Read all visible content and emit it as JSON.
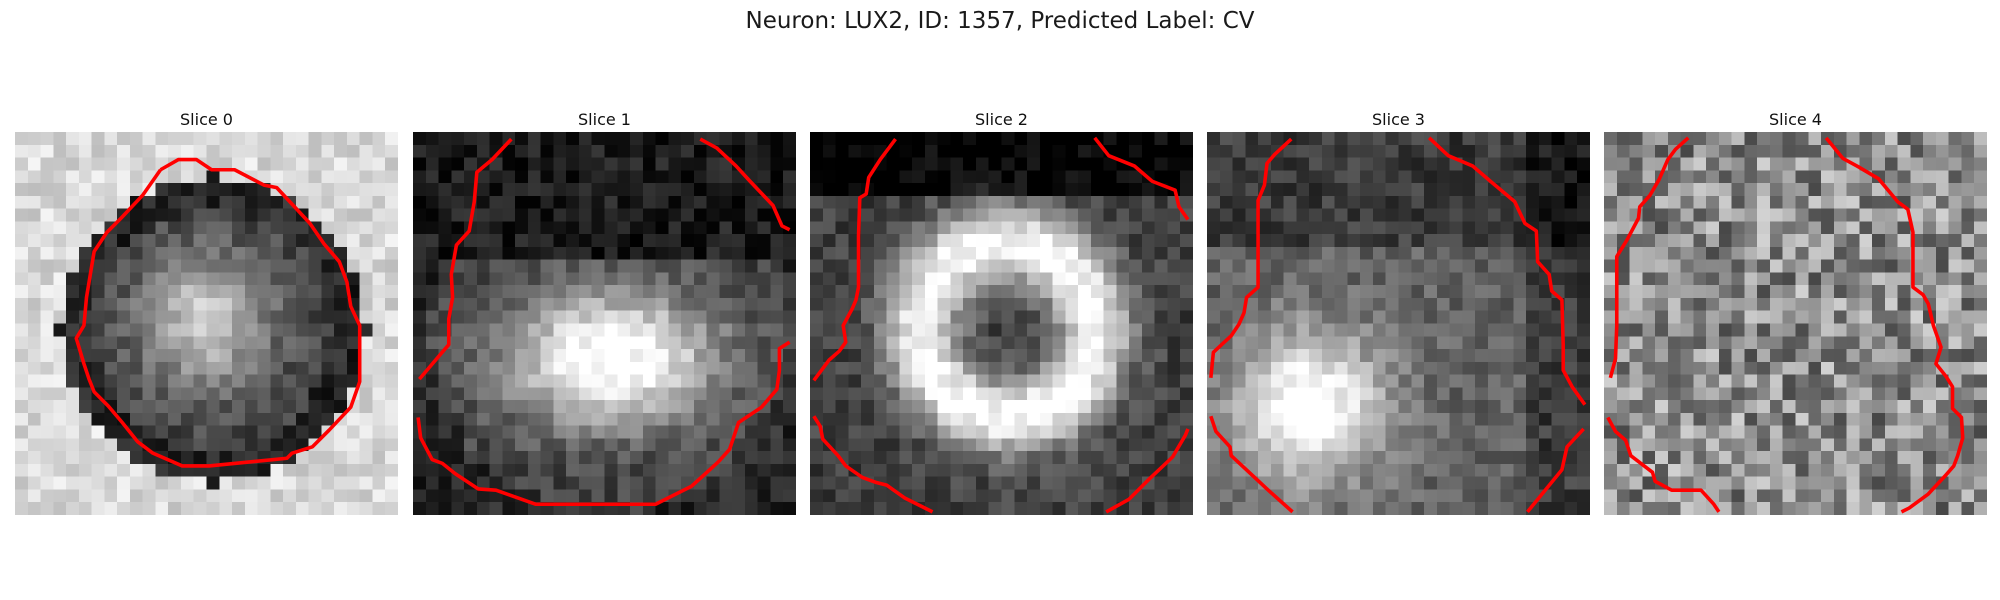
{
  "figure": {
    "title": "Neuron: LUX2, ID: 1357, Predicted Label: CV"
  },
  "panels": [
    {
      "title": "Slice 0",
      "pattern": "ring",
      "seed": 11
    },
    {
      "title": "Slice 1",
      "pattern": "top-dark",
      "seed": 23
    },
    {
      "title": "Slice 2",
      "pattern": "blob",
      "seed": 37
    },
    {
      "title": "Slice 3",
      "pattern": "left-bright",
      "seed": 41
    },
    {
      "title": "Slice 4",
      "pattern": "noise",
      "seed": 53
    }
  ],
  "colors": {
    "contour": "#ff0000"
  }
}
